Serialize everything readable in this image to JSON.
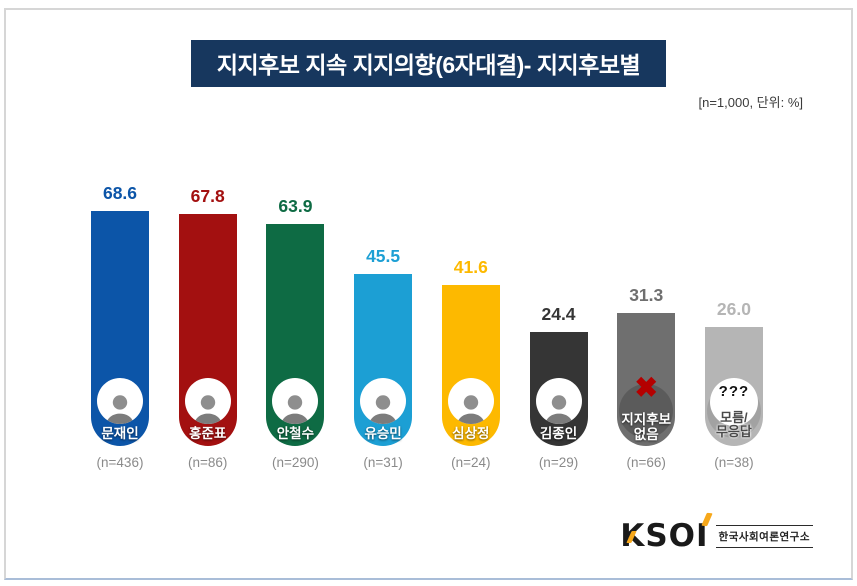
{
  "page": {
    "title": "지지후보 지속 지지의향(6자대결)- 지지후보별",
    "subtitle": "[n=1,000, 단위: %]"
  },
  "chart_data": {
    "type": "bar",
    "title": "지지후보 지속 지지의향(6자대결)- 지지후보별",
    "note": "[n=1,000, 단위: %]",
    "unit": "%",
    "total_sample": "n=1,000",
    "ylim": [
      0,
      100
    ],
    "grid": false,
    "legend": "none",
    "categories": [
      "문재인",
      "홍준표",
      "안철수",
      "유승민",
      "심상정",
      "김종인",
      "지지후보 없음",
      "모름/무응답"
    ],
    "values": [
      68.6,
      67.8,
      63.9,
      45.5,
      41.6,
      24.4,
      31.3,
      26.0
    ],
    "sample_labels": [
      "(n=436)",
      "(n=86)",
      "(n=290)",
      "(n=31)",
      "(n=24)",
      "(n=29)",
      "(n=66)",
      "(n=38)"
    ],
    "bars": [
      {
        "id": "moon-jaein",
        "label": "문재인",
        "value": 68.6,
        "n_label": "(n=436)",
        "color": "#0C55A8",
        "kind": "photo"
      },
      {
        "id": "hong-junpyo",
        "label": "홍준표",
        "value": 67.8,
        "n_label": "(n=86)",
        "color": "#A31010",
        "kind": "photo"
      },
      {
        "id": "ahn-cheolsoo",
        "label": "안철수",
        "value": 63.9,
        "n_label": "(n=290)",
        "color": "#0E6B44",
        "kind": "photo"
      },
      {
        "id": "yoo-seungmin",
        "label": "유승민",
        "value": 45.5,
        "n_label": "(n=31)",
        "color": "#1C9FD4",
        "kind": "photo"
      },
      {
        "id": "sim-sangjung",
        "label": "심상정",
        "value": 41.6,
        "n_label": "(n=24)",
        "color": "#FDB900",
        "kind": "photo"
      },
      {
        "id": "kim-jongin",
        "label": "김종인",
        "value": 24.4,
        "n_label": "(n=29)",
        "color": "#353535",
        "kind": "photo"
      },
      {
        "id": "no-support",
        "label": "지지후보 없음",
        "label_lines": [
          "지지후보",
          "없음"
        ],
        "value": 31.3,
        "n_label": "(n=66)",
        "color": "#6F6F6F",
        "kind": "no-support"
      },
      {
        "id": "dont-know",
        "label": "모름/무응답",
        "label_lines": [
          "모름/",
          "무응답"
        ],
        "question_marks": "???",
        "value": 26.0,
        "n_label": "(n=38)",
        "color": "#B5B5B5",
        "kind": "unknown"
      }
    ]
  },
  "icons": {
    "no_support_x": "✖",
    "person_avatar": "avatar-silhouette"
  },
  "footer": {
    "logo_text": "KSOI",
    "logo_org": "한국사회여론연구소"
  },
  "colors": {
    "title_bg": "#17375E",
    "title_text": "#FFFFFF",
    "subtitle_text": "#3B3B3B",
    "sample_label": "#8A8A8A",
    "x_mark": "#B40000",
    "logo_orange": "#F7A81B",
    "logo_black": "#1A1A1A",
    "frame_border": "#D6D6D6",
    "frame_border_bottom": "#A9BDD8"
  }
}
